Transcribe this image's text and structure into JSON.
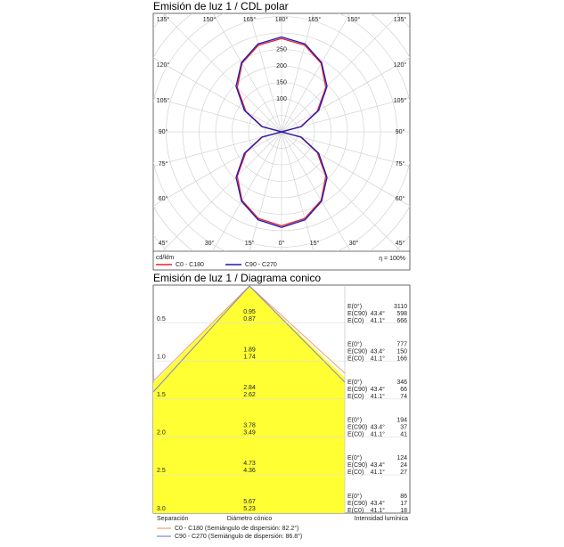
{
  "chart_data": {
    "type": "polar",
    "title": "Emisión de luz 1 / CDL polar",
    "angle_labels": {
      "top": [
        "135°",
        "150°",
        "165°",
        "180°",
        "165°",
        "150°",
        "135°"
      ],
      "bottom": [
        "45°",
        "30°",
        "15°",
        "0°",
        "15°",
        "30°",
        "45°"
      ],
      "left": [
        "120°",
        "105°",
        "90°",
        "75°",
        "60°"
      ],
      "right": [
        "120°",
        "105°",
        "90°",
        "75°",
        "60°"
      ]
    },
    "unit": "cd/klm",
    "efficiency": "η = 100%",
    "angles": [
      0,
      15,
      30,
      45,
      60,
      75,
      90,
      105,
      120,
      135,
      150,
      165,
      180
    ],
    "rlim": [
      0,
      300
    ],
    "rticks": [
      100,
      150,
      200,
      250
    ],
    "series": [
      {
        "name": "C0 - C180",
        "color": "#e8202a",
        "values": [
          285,
          272,
          240,
          190,
          125,
          60,
          0,
          60,
          125,
          190,
          240,
          272,
          283
        ]
      },
      {
        "name": "C90 - C270",
        "color": "#1a1ab8",
        "values": [
          290,
          276,
          243,
          195,
          130,
          62,
          0,
          62,
          130,
          195,
          243,
          276,
          288
        ]
      }
    ]
  },
  "cone": {
    "title": "Emisión de luz 1 / Diagrama conico",
    "rows": [
      {
        "height": "0.5",
        "diameters": [
          "0.95",
          "0.87"
        ],
        "e0_label": "E(0°)",
        "e0": "3110",
        "ec90_label": "E(C90)",
        "ec90_angle": "43.4°",
        "ec90": "598",
        "ec0_label": "E(C0)",
        "ec0_angle": "41.1°",
        "ec0": "666"
      },
      {
        "height": "1.0",
        "diameters": [
          "1.89",
          "1.74"
        ],
        "e0_label": "E(0°)",
        "e0": "777",
        "ec90_label": "E(C90)",
        "ec90_angle": "43.4°",
        "ec90": "150",
        "ec0_label": "E(C0)",
        "ec0_angle": "41.1°",
        "ec0": "166"
      },
      {
        "height": "1.5",
        "diameters": [
          "2.84",
          "2.62"
        ],
        "e0_label": "E(0°)",
        "e0": "346",
        "ec90_label": "E(C90)",
        "ec90_angle": "43.4°",
        "ec90": "66",
        "ec0_label": "E(C0)",
        "ec0_angle": "41.1°",
        "ec0": "74"
      },
      {
        "height": "2.0",
        "diameters": [
          "3.78",
          "3.49"
        ],
        "e0_label": "E(0°)",
        "e0": "194",
        "ec90_label": "E(C90)",
        "ec90_angle": "43.4°",
        "ec90": "37",
        "ec0_label": "E(C0)",
        "ec0_angle": "41.1°",
        "ec0": "41"
      },
      {
        "height": "2.5",
        "diameters": [
          "4.73",
          "4.36"
        ],
        "e0_label": "E(0°)",
        "e0": "124",
        "ec90_label": "E(C90)",
        "ec90_angle": "43.4°",
        "ec90": "24",
        "ec0_label": "E(C0)",
        "ec0_angle": "41.1°",
        "ec0": "27"
      },
      {
        "height": "3.0",
        "diameters": [
          "5.67",
          "5.23"
        ],
        "e0_label": "E(0°)",
        "e0": "86",
        "ec90_label": "E(C90)",
        "ec90_angle": "43.4°",
        "ec90": "17",
        "ec0_label": "E(C0)",
        "ec0_angle": "41.1°",
        "ec0": "18"
      }
    ],
    "footer": {
      "separation": "Separación",
      "diameter": "Diámetro cónico",
      "intensity": "Intensidad lumínica"
    },
    "legend": [
      {
        "text": "C0 - C180 (Semiángulo de dispersión: 82.2°)",
        "color": "#f0a070"
      },
      {
        "text": "C90 - C270 (Semiángulo de dispersión: 86.8°)",
        "color": "#8080e0"
      }
    ]
  }
}
